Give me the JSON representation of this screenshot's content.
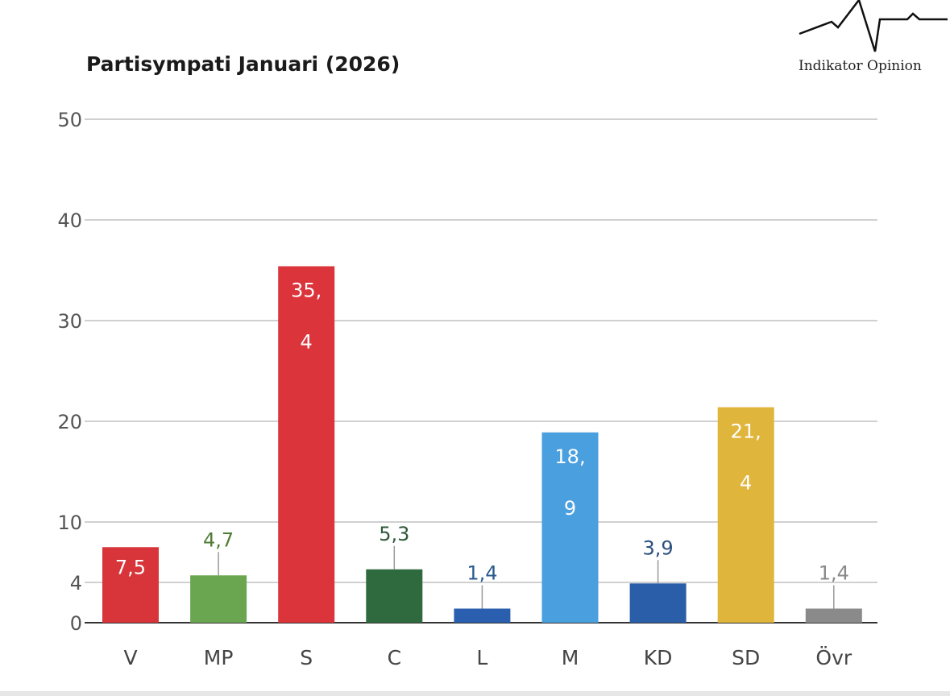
{
  "chart_data": {
    "type": "bar",
    "title": "Partisympati Januari (2026)",
    "xlabel": "",
    "ylabel": "",
    "ylim": [
      0,
      50
    ],
    "yticks": [
      0,
      4,
      10,
      20,
      30,
      40,
      50
    ],
    "grid": true,
    "categories": [
      "V",
      "MP",
      "S",
      "C",
      "L",
      "M",
      "KD",
      "SD",
      "Övr"
    ],
    "values": [
      7.5,
      4.7,
      35.4,
      5.3,
      1.4,
      18.9,
      3.9,
      21.4,
      1.4
    ],
    "value_labels": [
      "7,5",
      "4,7",
      "35,4",
      "5,3",
      "1,4",
      "18,9",
      "3,9",
      "21,4",
      "1,4"
    ],
    "colors": [
      "#d8353a",
      "#6aa650",
      "#dc343b",
      "#2e6a3e",
      "#2a5eae",
      "#4a9fdf",
      "#2a5ea8",
      "#e0b53c",
      "#8a8a8a"
    ],
    "label_colors": [
      "#ffffff",
      "#4f7d35",
      "#ffffff",
      "#2e5a3a",
      "#2a5a8e",
      "#ffffff",
      "#2a4f7e",
      "#ffffff",
      "#888888"
    ],
    "label_inside": [
      true,
      false,
      true,
      false,
      false,
      true,
      false,
      true,
      false
    ]
  },
  "logo": {
    "text": "Indikator Opinion"
  }
}
